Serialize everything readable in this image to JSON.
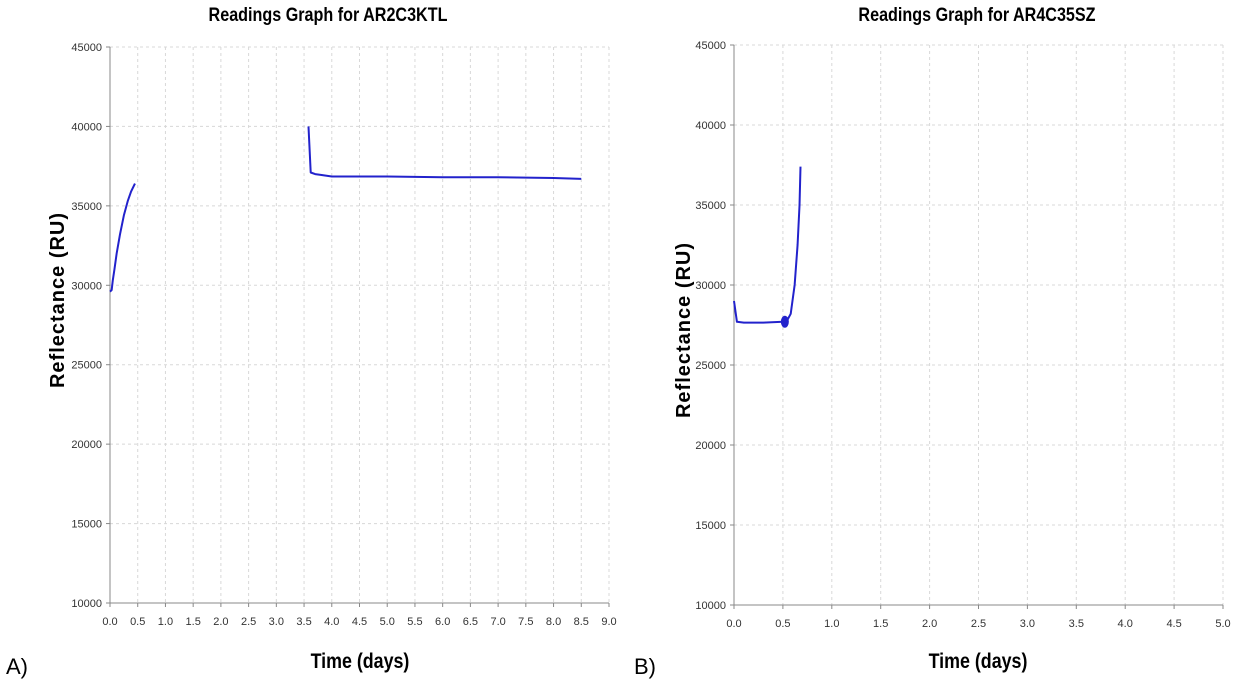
{
  "panels": [
    {
      "letter": "A)"
    },
    {
      "letter": "B)"
    }
  ],
  "colors": {
    "series": "#2222cc",
    "grid": "#d8d8d8",
    "axis": "#888888",
    "text": "#000000"
  },
  "chart_data": [
    {
      "type": "line",
      "title": "Readings Graph for AR2C3KTL",
      "xlabel": "Time (days)",
      "ylabel": "Reflectance (RU)",
      "xlim": [
        0,
        9
      ],
      "ylim": [
        10000,
        45000
      ],
      "xticks": [
        "0.0",
        "0.5",
        "1.0",
        "1.5",
        "2.0",
        "2.5",
        "3.0",
        "3.5",
        "4.0",
        "4.5",
        "5.0",
        "5.5",
        "6.0",
        "6.5",
        "7.0",
        "7.5",
        "8.0",
        "8.5",
        "9.0"
      ],
      "yticks": [
        "10000",
        "15000",
        "20000",
        "25000",
        "30000",
        "35000",
        "40000",
        "45000"
      ],
      "grid": true,
      "series": [
        {
          "segments": [
            [
              [
                0.0,
                29600
              ],
              [
                0.03,
                29700
              ],
              [
                0.05,
                30300
              ],
              [
                0.08,
                31000
              ],
              [
                0.12,
                32000
              ],
              [
                0.18,
                33200
              ],
              [
                0.25,
                34400
              ],
              [
                0.32,
                35300
              ],
              [
                0.38,
                35900
              ],
              [
                0.45,
                36400
              ]
            ],
            [
              [
                3.58,
                40000
              ],
              [
                3.62,
                37100
              ],
              [
                3.7,
                37000
              ],
              [
                3.8,
                36950
              ],
              [
                4.0,
                36850
              ],
              [
                4.5,
                36850
              ],
              [
                5.0,
                36850
              ],
              [
                6.0,
                36800
              ],
              [
                7.0,
                36800
              ],
              [
                8.0,
                36750
              ],
              [
                8.5,
                36700
              ]
            ]
          ]
        }
      ]
    },
    {
      "type": "line",
      "title": "Readings Graph for AR4C35SZ",
      "xlabel": "Time (days)",
      "ylabel": "Reflectance (RU)",
      "xlim": [
        0,
        5
      ],
      "ylim": [
        10000,
        45000
      ],
      "xticks": [
        "0.0",
        "0.5",
        "1.0",
        "1.5",
        "2.0",
        "2.5",
        "3.0",
        "3.5",
        "4.0",
        "4.5",
        "5.0"
      ],
      "yticks": [
        "10000",
        "15000",
        "20000",
        "25000",
        "30000",
        "35000",
        "40000",
        "45000"
      ],
      "grid": true,
      "series": [
        {
          "segments": [
            [
              [
                0.0,
                29000
              ],
              [
                0.03,
                27700
              ],
              [
                0.1,
                27650
              ],
              [
                0.3,
                27650
              ],
              [
                0.5,
                27700
              ],
              [
                0.54,
                27750
              ],
              [
                0.58,
                28200
              ],
              [
                0.62,
                30000
              ],
              [
                0.65,
                32500
              ],
              [
                0.67,
                35000
              ],
              [
                0.68,
                37400
              ]
            ]
          ],
          "markers": [
            [
              0.52,
              27700
            ]
          ]
        }
      ]
    }
  ]
}
